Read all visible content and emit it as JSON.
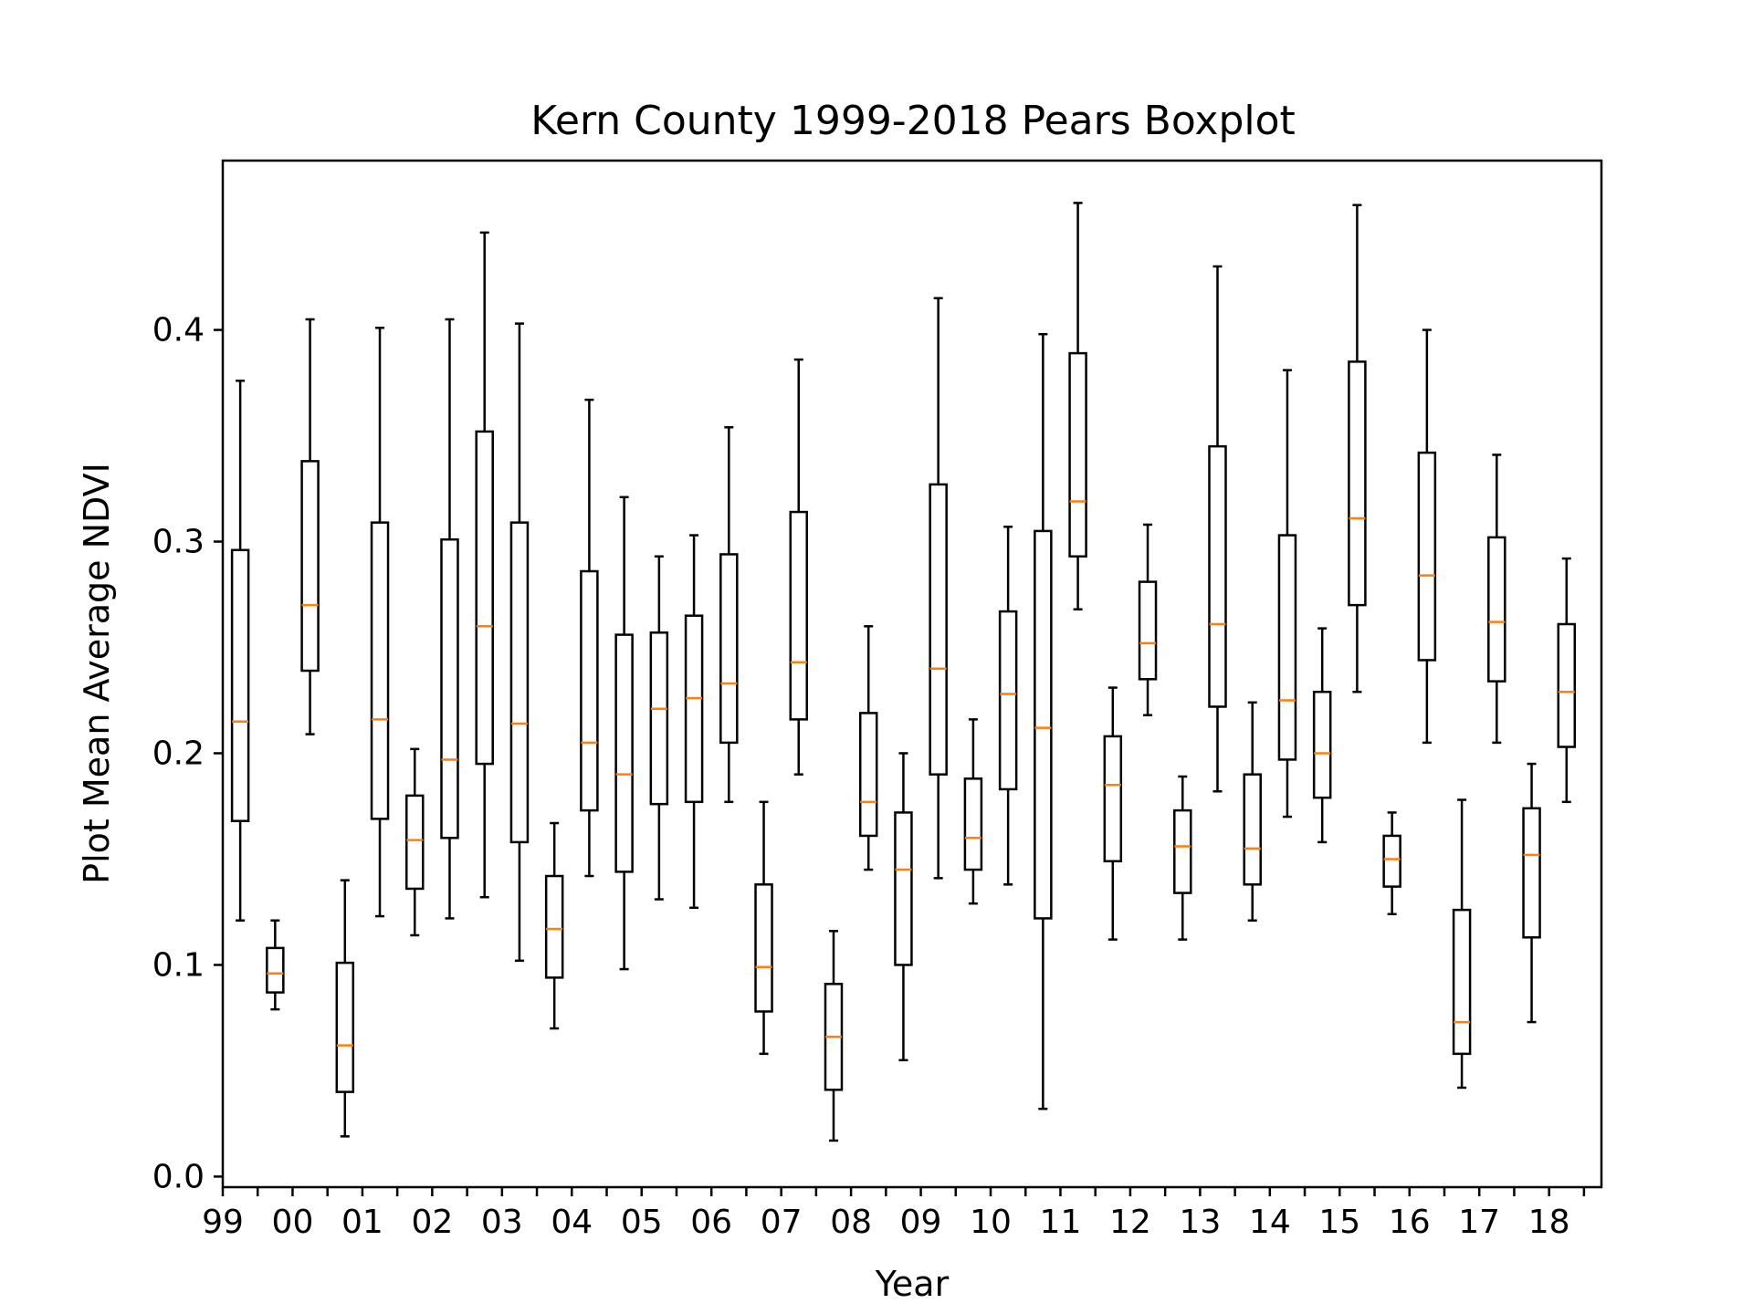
{
  "chart_data": {
    "type": "boxplot",
    "title": "Kern County 1999-2018 Pears Boxplot",
    "xlabel": "Year",
    "ylabel": "Plot Mean Average NDVI",
    "ylim": [
      -0.005,
      0.48
    ],
    "yticks": [
      {
        "value": 0.0,
        "label": "0.0"
      },
      {
        "value": 0.1,
        "label": "0.1"
      },
      {
        "value": 0.2,
        "label": "0.2"
      },
      {
        "value": 0.3,
        "label": "0.3"
      },
      {
        "value": 0.4,
        "label": "0.4"
      }
    ],
    "xtick_labels": [
      "99",
      "00",
      "01",
      "02",
      "03",
      "04",
      "05",
      "06",
      "07",
      "08",
      "09",
      "10",
      "11",
      "12",
      "13",
      "14",
      "15",
      "16",
      "17",
      "18"
    ],
    "grid": false,
    "colors": {
      "box": "#000000",
      "median": "#ff7f0e"
    },
    "boxes": [
      {
        "whislo": 0.121,
        "q1": 0.168,
        "med": 0.215,
        "q3": 0.296,
        "whishi": 0.376
      },
      {
        "whislo": 0.079,
        "q1": 0.087,
        "med": 0.096,
        "q3": 0.108,
        "whishi": 0.121
      },
      {
        "whislo": 0.209,
        "q1": 0.239,
        "med": 0.27,
        "q3": 0.338,
        "whishi": 0.405
      },
      {
        "whislo": 0.019,
        "q1": 0.04,
        "med": 0.062,
        "q3": 0.101,
        "whishi": 0.14
      },
      {
        "whislo": 0.123,
        "q1": 0.169,
        "med": 0.216,
        "q3": 0.309,
        "whishi": 0.401
      },
      {
        "whislo": 0.114,
        "q1": 0.136,
        "med": 0.159,
        "q3": 0.18,
        "whishi": 0.202
      },
      {
        "whislo": 0.122,
        "q1": 0.16,
        "med": 0.197,
        "q3": 0.301,
        "whishi": 0.405
      },
      {
        "whislo": 0.132,
        "q1": 0.195,
        "med": 0.26,
        "q3": 0.352,
        "whishi": 0.446
      },
      {
        "whislo": 0.102,
        "q1": 0.158,
        "med": 0.214,
        "q3": 0.309,
        "whishi": 0.403
      },
      {
        "whislo": 0.07,
        "q1": 0.094,
        "med": 0.117,
        "q3": 0.142,
        "whishi": 0.167
      },
      {
        "whislo": 0.142,
        "q1": 0.173,
        "med": 0.205,
        "q3": 0.286,
        "whishi": 0.367
      },
      {
        "whislo": 0.098,
        "q1": 0.144,
        "med": 0.19,
        "q3": 0.256,
        "whishi": 0.321
      },
      {
        "whislo": 0.131,
        "q1": 0.176,
        "med": 0.221,
        "q3": 0.257,
        "whishi": 0.293
      },
      {
        "whislo": 0.127,
        "q1": 0.177,
        "med": 0.226,
        "q3": 0.265,
        "whishi": 0.303
      },
      {
        "whislo": 0.177,
        "q1": 0.205,
        "med": 0.233,
        "q3": 0.294,
        "whishi": 0.354
      },
      {
        "whislo": 0.058,
        "q1": 0.078,
        "med": 0.099,
        "q3": 0.138,
        "whishi": 0.177
      },
      {
        "whislo": 0.19,
        "q1": 0.216,
        "med": 0.243,
        "q3": 0.314,
        "whishi": 0.386
      },
      {
        "whislo": 0.017,
        "q1": 0.041,
        "med": 0.066,
        "q3": 0.091,
        "whishi": 0.116
      },
      {
        "whislo": 0.145,
        "q1": 0.161,
        "med": 0.177,
        "q3": 0.219,
        "whishi": 0.26
      },
      {
        "whislo": 0.055,
        "q1": 0.1,
        "med": 0.145,
        "q3": 0.172,
        "whishi": 0.2
      },
      {
        "whislo": 0.141,
        "q1": 0.19,
        "med": 0.24,
        "q3": 0.327,
        "whishi": 0.415
      },
      {
        "whislo": 0.129,
        "q1": 0.145,
        "med": 0.16,
        "q3": 0.188,
        "whishi": 0.216
      },
      {
        "whislo": 0.138,
        "q1": 0.183,
        "med": 0.228,
        "q3": 0.267,
        "whishi": 0.307
      },
      {
        "whislo": 0.032,
        "q1": 0.122,
        "med": 0.212,
        "q3": 0.305,
        "whishi": 0.398
      },
      {
        "whislo": 0.268,
        "q1": 0.293,
        "med": 0.319,
        "q3": 0.389,
        "whishi": 0.46
      },
      {
        "whislo": 0.112,
        "q1": 0.149,
        "med": 0.185,
        "q3": 0.208,
        "whishi": 0.231
      },
      {
        "whislo": 0.218,
        "q1": 0.235,
        "med": 0.252,
        "q3": 0.281,
        "whishi": 0.308
      },
      {
        "whislo": 0.112,
        "q1": 0.134,
        "med": 0.156,
        "q3": 0.173,
        "whishi": 0.189
      },
      {
        "whislo": 0.182,
        "q1": 0.222,
        "med": 0.261,
        "q3": 0.345,
        "whishi": 0.43
      },
      {
        "whislo": 0.121,
        "q1": 0.138,
        "med": 0.155,
        "q3": 0.19,
        "whishi": 0.224
      },
      {
        "whislo": 0.17,
        "q1": 0.197,
        "med": 0.225,
        "q3": 0.303,
        "whishi": 0.381
      },
      {
        "whislo": 0.158,
        "q1": 0.179,
        "med": 0.2,
        "q3": 0.229,
        "whishi": 0.259
      },
      {
        "whislo": 0.229,
        "q1": 0.27,
        "med": 0.311,
        "q3": 0.385,
        "whishi": 0.459
      },
      {
        "whislo": 0.124,
        "q1": 0.137,
        "med": 0.15,
        "q3": 0.161,
        "whishi": 0.172
      },
      {
        "whislo": 0.205,
        "q1": 0.244,
        "med": 0.284,
        "q3": 0.342,
        "whishi": 0.4
      },
      {
        "whislo": 0.042,
        "q1": 0.058,
        "med": 0.073,
        "q3": 0.126,
        "whishi": 0.178
      },
      {
        "whislo": 0.205,
        "q1": 0.234,
        "med": 0.262,
        "q3": 0.302,
        "whishi": 0.341
      },
      {
        "whislo": 0.073,
        "q1": 0.113,
        "med": 0.152,
        "q3": 0.174,
        "whishi": 0.195
      },
      {
        "whislo": 0.177,
        "q1": 0.203,
        "med": 0.229,
        "q3": 0.261,
        "whishi": 0.292
      }
    ]
  }
}
